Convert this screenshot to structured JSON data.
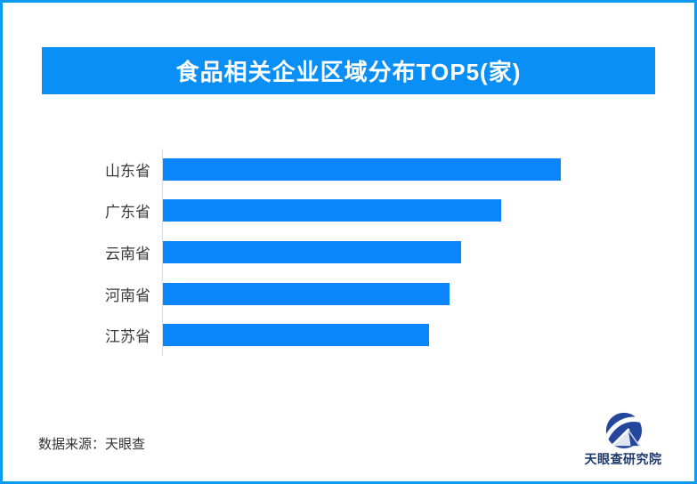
{
  "page": {
    "border_color": "#0d9bf2",
    "background_color": "#ffffff"
  },
  "header": {
    "title": "食品相关企业区域分布TOP5(家)",
    "bg_color": "#0a8ff6",
    "text_color": "#ffffff"
  },
  "chart_data": {
    "type": "bar",
    "orientation": "horizontal",
    "title": "食品相关企业区域分布TOP5(家)",
    "categories": [
      "山东省",
      "广东省",
      "云南省",
      "河南省",
      "江苏省"
    ],
    "values": [
      100,
      85,
      75,
      72,
      67
    ],
    "value_note": "no numeric labels shown; values are relative bar lengths, longest bar = 100",
    "bar_color": "#0b86fa",
    "axis_line_color": "#d5dce8",
    "grid": false,
    "legend": false,
    "xlabel": "",
    "ylabel": ""
  },
  "footer": {
    "source_text": "数据来源：天眼查",
    "logo_text": "天眼查研究院",
    "logo_text_color": "#1d3a6b",
    "logo_blue": "#24479d"
  }
}
